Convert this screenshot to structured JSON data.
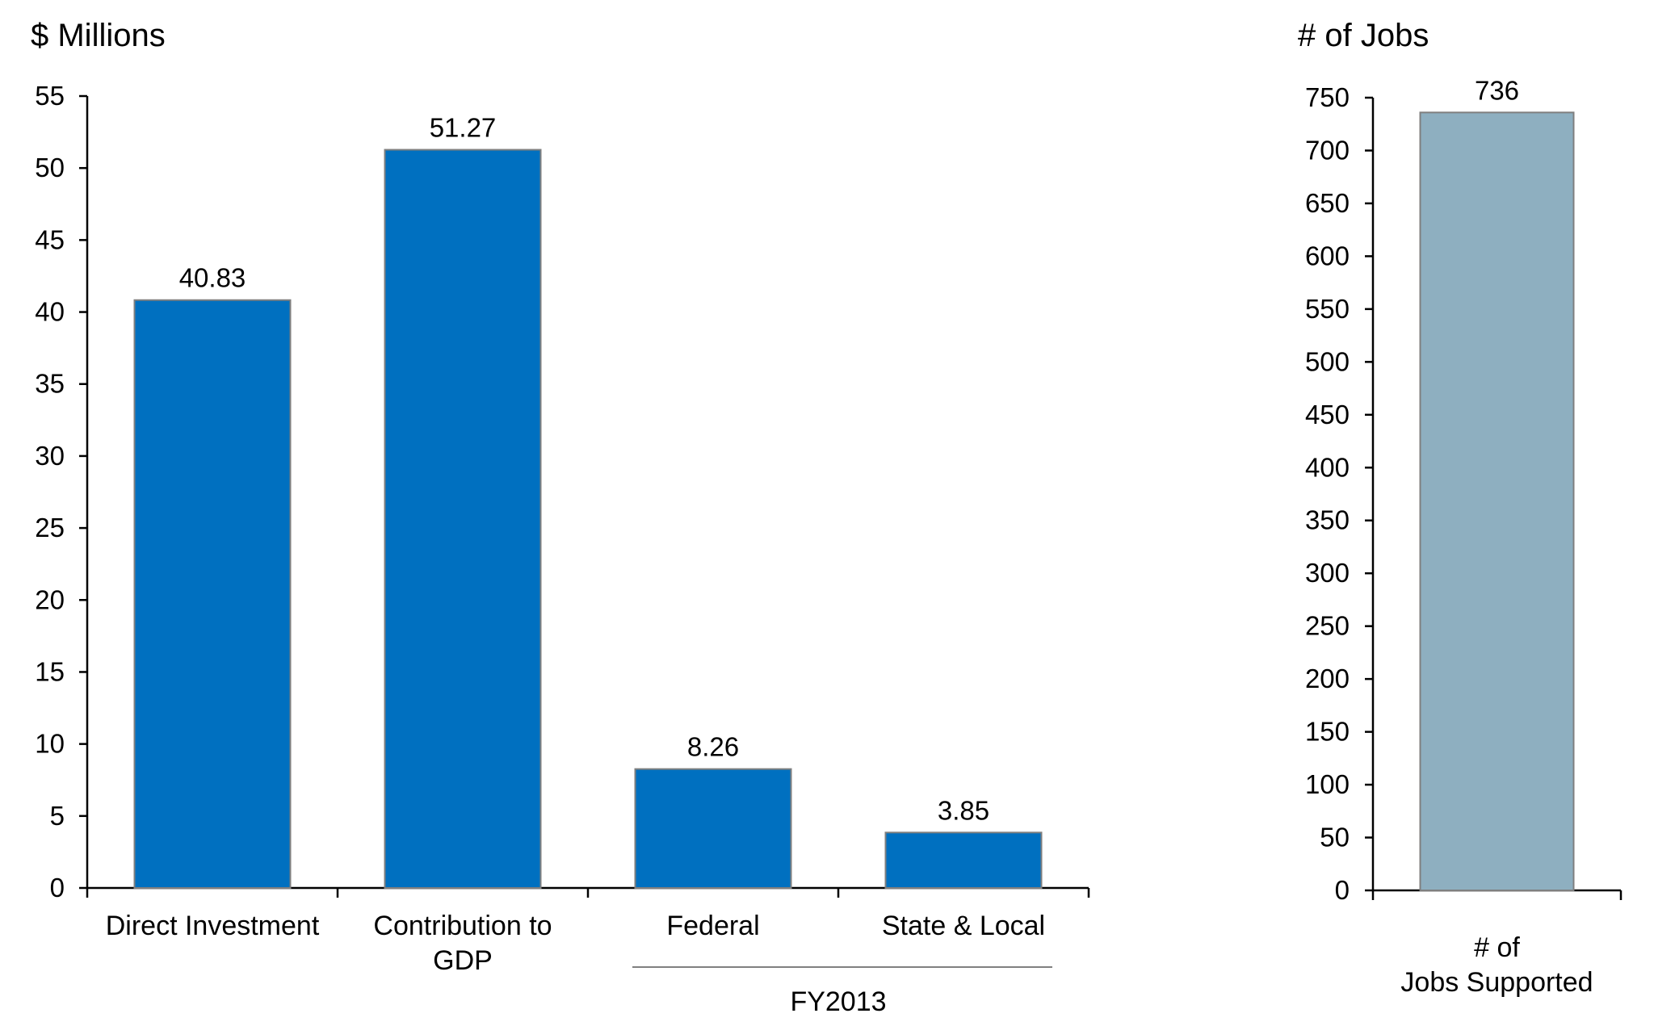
{
  "chart_data": [
    {
      "type": "bar",
      "ylabel": "$ Millions",
      "ylim": [
        0,
        55
      ],
      "yticks": [
        0,
        5,
        10,
        15,
        20,
        25,
        30,
        35,
        40,
        45,
        50,
        55
      ],
      "categories": [
        "Direct Investment",
        "Contribution to GDP",
        "Federal",
        "State & Local"
      ],
      "values": [
        40.83,
        51.27,
        8.26,
        3.85
      ],
      "data_labels": [
        "40.83",
        "51.27",
        "8.26",
        "3.85"
      ],
      "category_groups": [
        {
          "label": "FY2013",
          "categories": [
            "Federal",
            "State & Local"
          ]
        }
      ],
      "bar_color": "#0070c0",
      "grid": false,
      "legend": "none"
    },
    {
      "type": "bar",
      "ylabel": "# of Jobs",
      "ylim": [
        0,
        750
      ],
      "yticks": [
        0,
        50,
        100,
        150,
        200,
        250,
        300,
        350,
        400,
        450,
        500,
        550,
        600,
        650,
        700,
        750
      ],
      "categories": [
        "# of Jobs Supported"
      ],
      "values": [
        736
      ],
      "data_labels": [
        "736"
      ],
      "bar_color": "#8eafc0",
      "grid": false,
      "legend": "none"
    }
  ],
  "colors": {
    "axis": "#000000",
    "bar_edge": "#7f7f7f",
    "group_rule": "#808080"
  }
}
